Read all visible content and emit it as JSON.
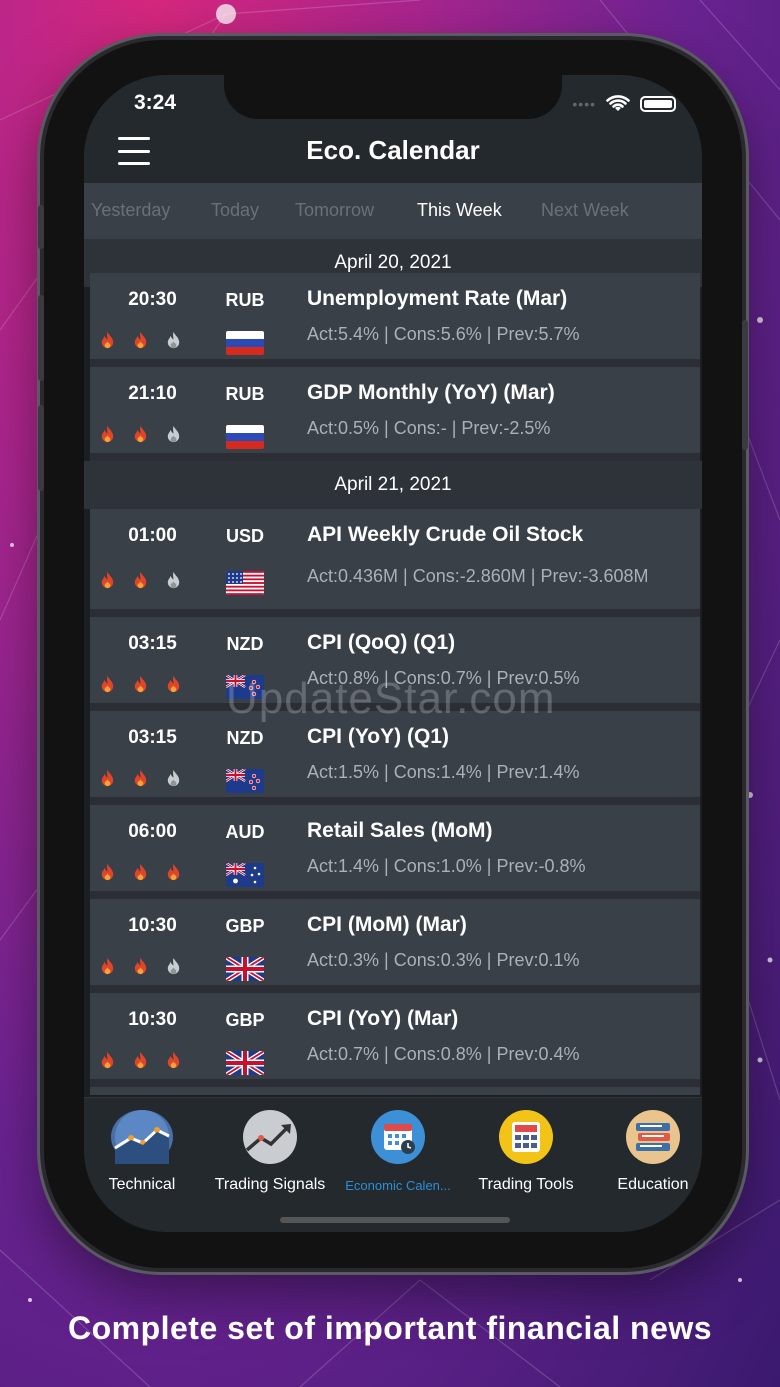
{
  "status": {
    "time": "3:24"
  },
  "header": {
    "title": "Eco. Calendar"
  },
  "tabs": [
    {
      "label": "Yesterday",
      "active": false
    },
    {
      "label": "Today",
      "active": false
    },
    {
      "label": "Tomorrow",
      "active": false
    },
    {
      "label": "This Week",
      "active": true
    },
    {
      "label": "Next Week",
      "active": false
    }
  ],
  "calendar": [
    {
      "date": "April 20, 2021",
      "events": [
        {
          "time": "20:30",
          "currency": "RUB",
          "name": "Unemployment Rate (Mar)",
          "values": "Act:5.4% | Cons:5.6% | Prev:5.7%",
          "impact": 2,
          "flag": "russia"
        },
        {
          "time": "21:10",
          "currency": "RUB",
          "name": "GDP Monthly (YoY) (Mar)",
          "values": "Act:0.5% | Cons:- | Prev:-2.5%",
          "impact": 2,
          "flag": "russia"
        }
      ]
    },
    {
      "date": "April 21, 2021",
      "events": [
        {
          "time": "01:00",
          "currency": "USD",
          "name": "API Weekly Crude Oil Stock",
          "values": "Act:0.436M | Cons:-2.860M | Prev:-3.608M",
          "impact": 2,
          "flag": "usa"
        },
        {
          "time": "03:15",
          "currency": "NZD",
          "name": "CPI (QoQ) (Q1)",
          "values": "Act:0.8% | Cons:0.7% | Prev:0.5%",
          "impact": 3,
          "flag": "nz"
        },
        {
          "time": "03:15",
          "currency": "NZD",
          "name": "CPI (YoY) (Q1)",
          "values": "Act:1.5% | Cons:1.4% | Prev:1.4%",
          "impact": 2,
          "flag": "nz"
        },
        {
          "time": "06:00",
          "currency": "AUD",
          "name": "Retail Sales (MoM)",
          "values": "Act:1.4% | Cons:1.0% | Prev:-0.8%",
          "impact": 3,
          "flag": "au"
        },
        {
          "time": "10:30",
          "currency": "GBP",
          "name": "CPI (MoM) (Mar)",
          "values": "Act:0.3% | Cons:0.3% | Prev:0.1%",
          "impact": 2,
          "flag": "uk"
        },
        {
          "time": "10:30",
          "currency": "GBP",
          "name": "CPI (YoY) (Mar)",
          "values": "Act:0.7% | Cons:0.8% | Prev:0.4%",
          "impact": 3,
          "flag": "uk"
        }
      ]
    }
  ],
  "tabbar": [
    {
      "label": "Technical",
      "icon": "chart-line-icon",
      "active": false
    },
    {
      "label": "Trading Signals",
      "icon": "trend-arrow-icon",
      "active": false
    },
    {
      "label": "Economic Calen...",
      "icon": "calendar-icon",
      "active": true
    },
    {
      "label": "Trading Tools",
      "icon": "calculator-icon",
      "active": false
    },
    {
      "label": "Education",
      "icon": "books-icon",
      "active": false
    }
  ],
  "watermark": "UpdateStar.com",
  "caption": "Complete set of important financial news",
  "colors": {
    "flame_active": "#e0452a",
    "flame_inactive": "#c9ccd1",
    "active_tab": "#2b8fd6"
  }
}
